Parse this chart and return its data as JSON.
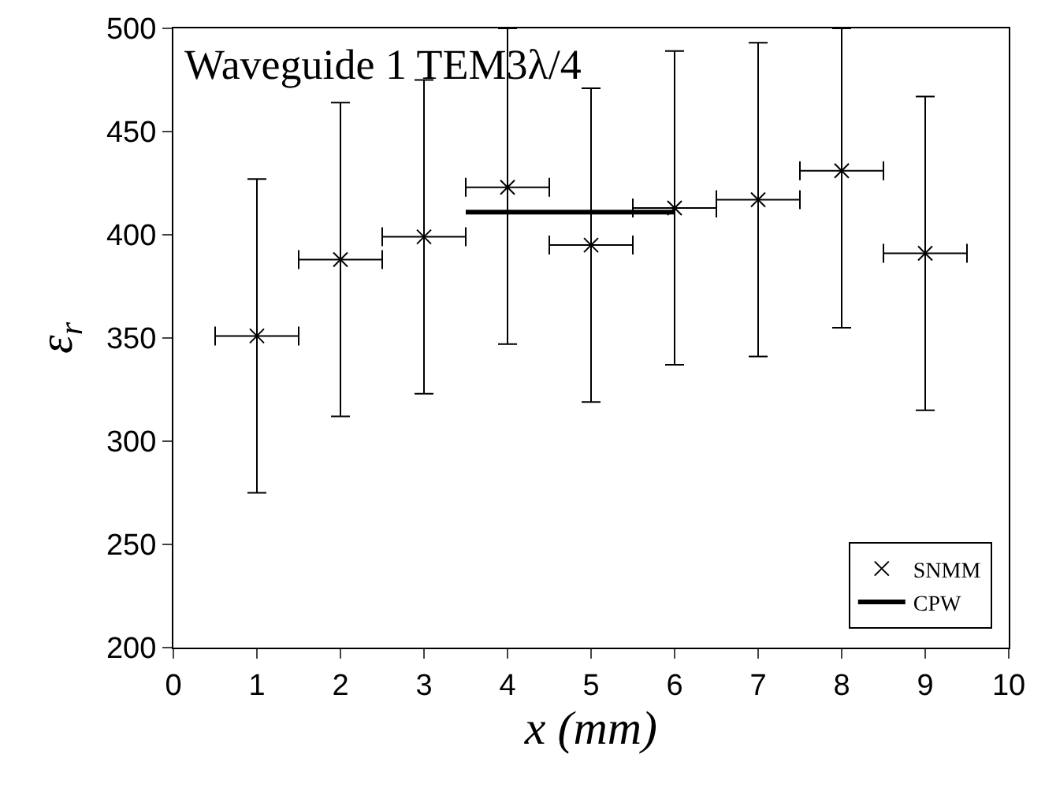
{
  "chart_data": {
    "type": "scatter",
    "xlabel": "x (mm)",
    "ylabel": "ε$_{r}$",
    "annotations": [
      "Waveguide 1 TEM3λ/4"
    ],
    "series": [
      {
        "name": "SNMM",
        "color": "#000000",
        "marker": "cross",
        "x": [
          1,
          2,
          3,
          4,
          5,
          6,
          7,
          8,
          9
        ],
        "values": [
          351,
          388,
          399,
          423,
          395,
          413,
          417,
          431,
          391
        ],
        "errors": [
          76,
          76,
          76,
          [
            347,
            500
          ],
          76,
          76,
          76,
          [
            355,
            500
          ],
          76
        ],
        "xerrors": [
          0.5,
          0.5,
          0.5,
          0.5,
          0.5,
          0.5,
          0.5,
          0.5,
          0.5
        ]
      },
      {
        "name": "CPW",
        "type": "line",
        "color": "#000000",
        "line_style": "solid",
        "marker": "none",
        "x": [
          3.5,
          6
        ],
        "values": [
          411,
          411
        ]
      }
    ],
    "xlim": [
      0,
      10
    ],
    "xticks": [
      0,
      1,
      2,
      3,
      4,
      5,
      6,
      7,
      8,
      9,
      10
    ],
    "ylim": [
      200,
      500
    ],
    "yticks": [
      200,
      250,
      300,
      350,
      400,
      450,
      500
    ],
    "grid": false,
    "legend": "bottom right"
  }
}
